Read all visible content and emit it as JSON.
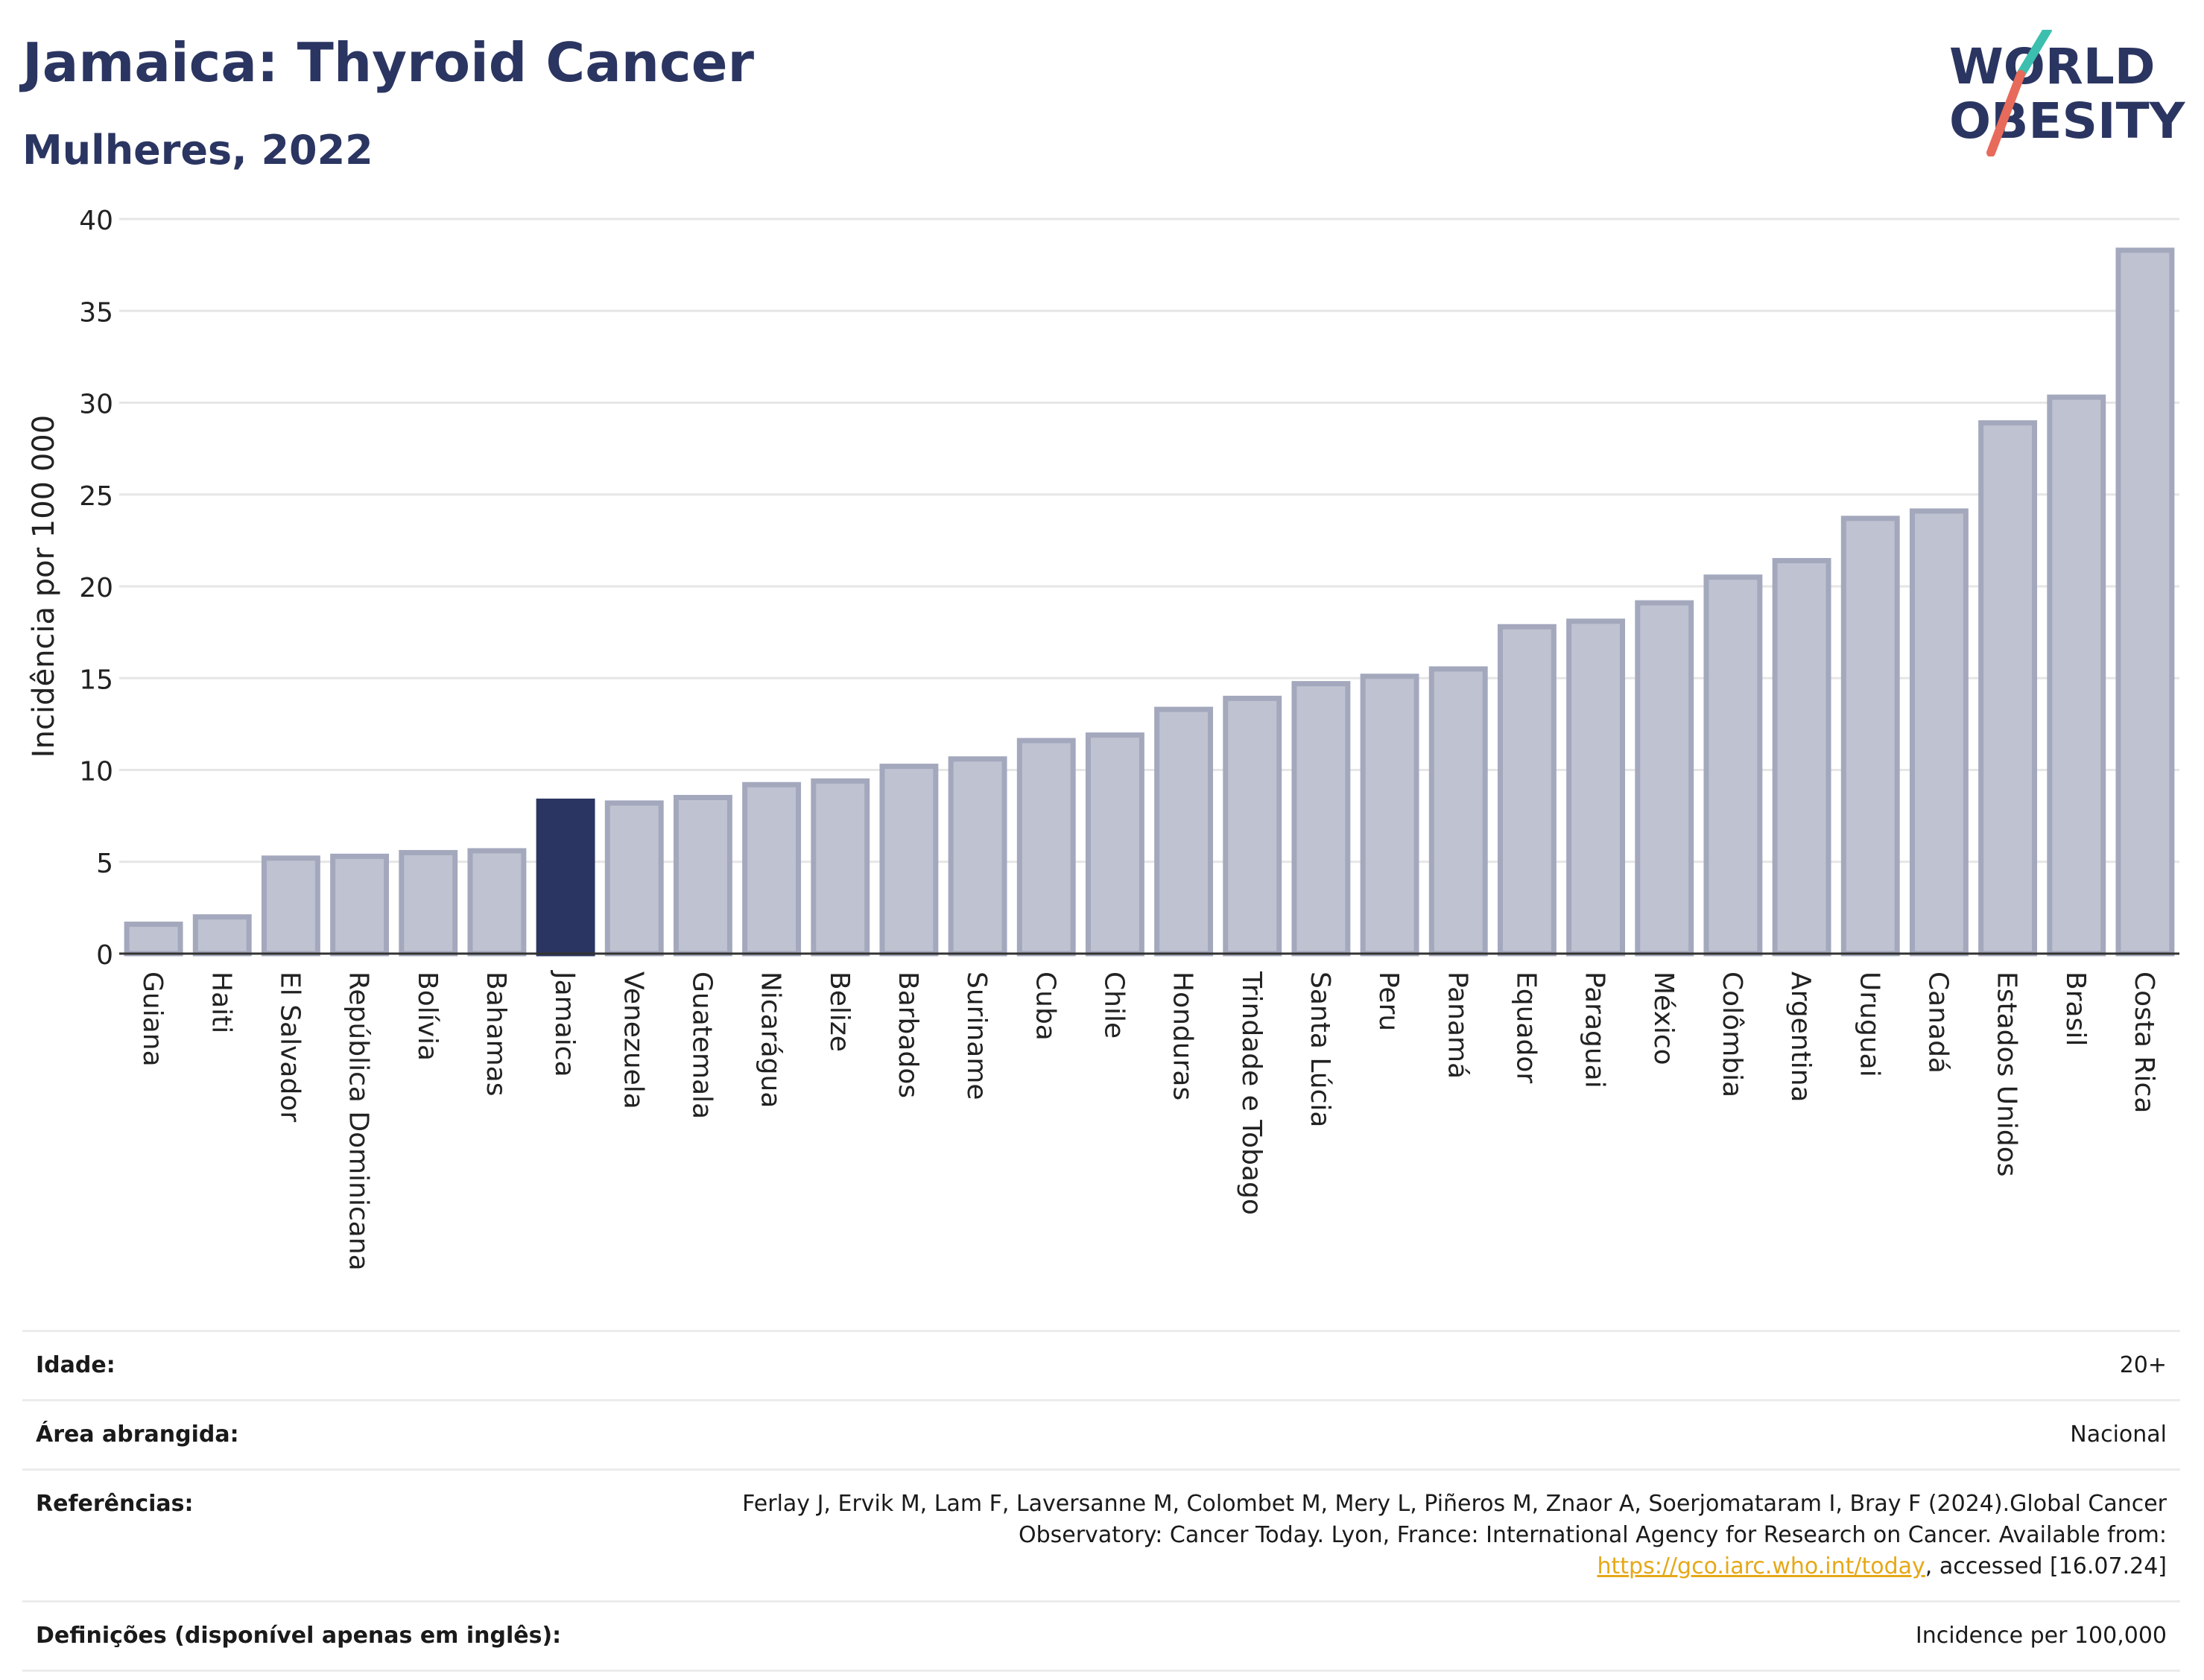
{
  "header": {
    "title": "Jamaica: Thyroid Cancer",
    "subtitle": "Mulheres, 2022"
  },
  "logo": {
    "line1": "WORLD",
    "line2": "OBESITY"
  },
  "chart_data": {
    "type": "bar",
    "ylabel": "Incidência por 100 000",
    "xlabel": "",
    "ylim": [
      0,
      40
    ],
    "yticks": [
      0,
      5,
      10,
      15,
      20,
      25,
      30,
      35,
      40
    ],
    "grid": true,
    "highlight": "Jamaica",
    "colors": {
      "bar": "#bfc2d0",
      "bar_edge": "#a3a8bd",
      "highlight": "#2b3561",
      "grid": "#e6e6e6",
      "axis": "#333333"
    },
    "categories": [
      "Guiana",
      "Haiti",
      "El Salvador",
      "República Dominicana",
      "Bolívia",
      "Bahamas",
      "Jamaica",
      "Venezuela",
      "Guatemala",
      "Nicarágua",
      "Belize",
      "Barbados",
      "Suriname",
      "Cuba",
      "Chile",
      "Honduras",
      "Trindade e Tobago",
      "Santa Lúcia",
      "Peru",
      "Panamá",
      "Equador",
      "Paraguai",
      "México",
      "Colômbia",
      "Argentina",
      "Uruguai",
      "Canadá",
      "Estados Unidos",
      "Brasil",
      "Costa Rica"
    ],
    "values": [
      1.6,
      2.0,
      5.2,
      5.3,
      5.5,
      5.6,
      8.3,
      8.2,
      8.5,
      9.2,
      9.4,
      10.2,
      10.6,
      11.6,
      11.9,
      13.3,
      13.9,
      14.7,
      15.1,
      15.5,
      17.8,
      18.1,
      19.1,
      20.5,
      21.4,
      23.7,
      24.1,
      28.9,
      30.3,
      38.3
    ]
  },
  "meta": {
    "age_label": "Idade:",
    "age_value": "20+",
    "area_label": "Área abrangida:",
    "area_value": "Nacional",
    "ref_label": "Referências:",
    "ref_text": "Ferlay J, Ervik M, Lam F, Laversanne M, Colombet M, Mery L, Piñeros M, Znaor A, Soerjomataram I, Bray F (2024).Global Cancer Observatory: Cancer Today. Lyon, France: International Agency for Research on Cancer. Available from:",
    "ref_link": "https://gco.iarc.who.int/today",
    "ref_tail": ", accessed [16.07.24]",
    "def_label": "Definições (disponível apenas em inglês):",
    "def_value": "Incidence per 100,000"
  }
}
